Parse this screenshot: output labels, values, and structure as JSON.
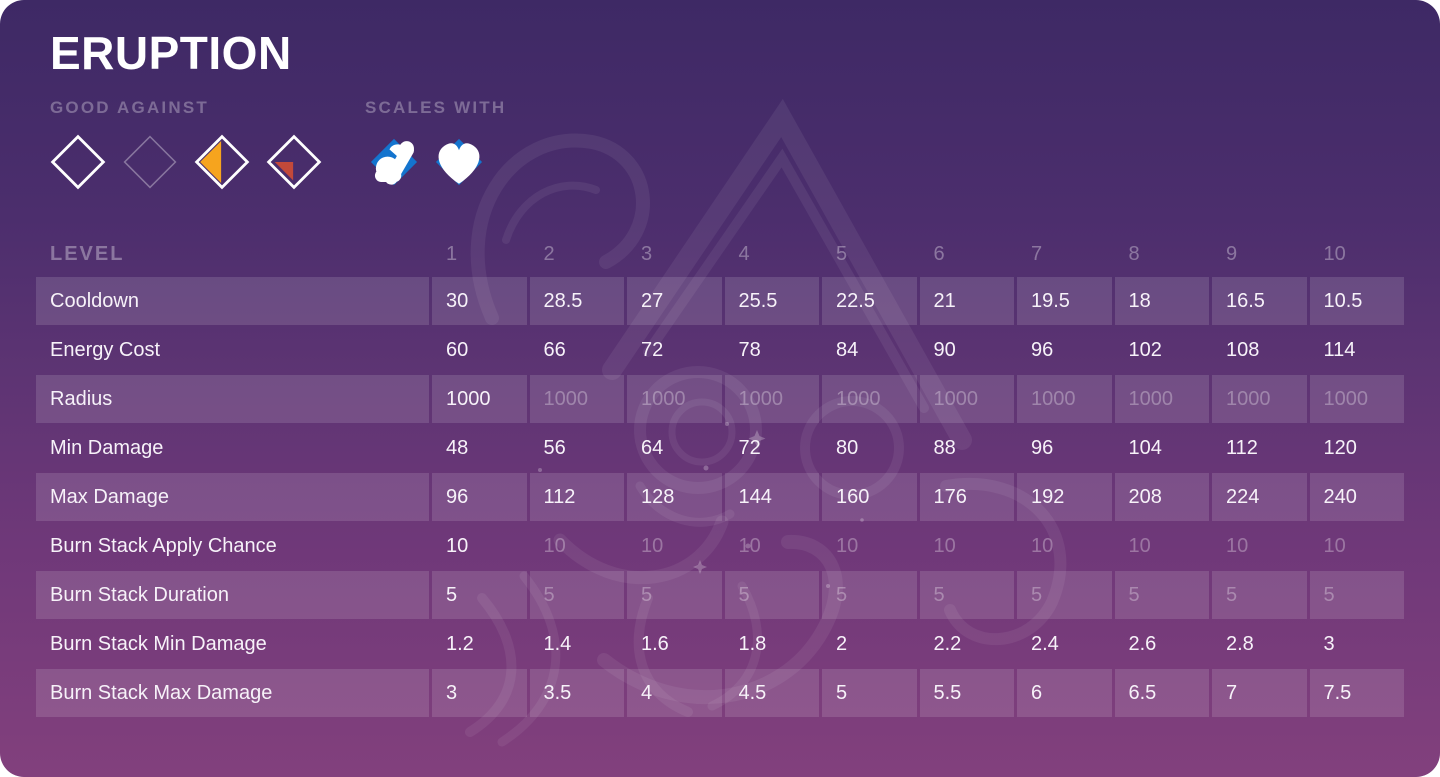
{
  "skill": {
    "name": "ERUPTION"
  },
  "good_against": {
    "label": "GOOD AGAINST",
    "items": [
      {
        "icon": "diamond-outline-icon",
        "variant": "full-outline"
      },
      {
        "icon": "diamond-outline-faint-icon",
        "variant": "faint-outline"
      },
      {
        "icon": "diamond-half-fill-icon",
        "variant": "half-fill"
      },
      {
        "icon": "diamond-quarter-fill-icon",
        "variant": "quarter-fill"
      }
    ]
  },
  "scales_with": {
    "label": "SCALES WITH",
    "items": [
      {
        "icon": "strength-icon"
      },
      {
        "icon": "health-icon"
      }
    ]
  },
  "colors": {
    "background_top": "#3E2965",
    "background_bottom": "#82407D",
    "row_stripe": "rgba(255,255,255,0.135)",
    "effectiveness_half": "#F6A41E",
    "effectiveness_quarter": "#C3493A",
    "scales_diamond": "#1474CE",
    "text_primary": "#FFFFFF",
    "text_muted": "rgba(255,255,255,0.32)"
  },
  "table": {
    "level_label": "LEVEL",
    "levels": [
      "1",
      "2",
      "3",
      "4",
      "5",
      "6",
      "7",
      "8",
      "9",
      "10"
    ],
    "rows": [
      {
        "label": "Cooldown",
        "values": [
          "30",
          "28.5",
          "27",
          "25.5",
          "22.5",
          "21",
          "19.5",
          "18",
          "16.5",
          "10.5"
        ],
        "dim_after_first": false
      },
      {
        "label": "Energy Cost",
        "values": [
          "60",
          "66",
          "72",
          "78",
          "84",
          "90",
          "96",
          "102",
          "108",
          "114"
        ],
        "dim_after_first": false
      },
      {
        "label": "Radius",
        "values": [
          "1000",
          "1000",
          "1000",
          "1000",
          "1000",
          "1000",
          "1000",
          "1000",
          "1000",
          "1000"
        ],
        "dim_after_first": true
      },
      {
        "label": "Min Damage",
        "values": [
          "48",
          "56",
          "64",
          "72",
          "80",
          "88",
          "96",
          "104",
          "112",
          "120"
        ],
        "dim_after_first": false
      },
      {
        "label": "Max Damage",
        "values": [
          "96",
          "112",
          "128",
          "144",
          "160",
          "176",
          "192",
          "208",
          "224",
          "240"
        ],
        "dim_after_first": false
      },
      {
        "label": "Burn Stack Apply Chance",
        "values": [
          "10",
          "10",
          "10",
          "10",
          "10",
          "10",
          "10",
          "10",
          "10",
          "10"
        ],
        "dim_after_first": true
      },
      {
        "label": "Burn Stack Duration",
        "values": [
          "5",
          "5",
          "5",
          "5",
          "5",
          "5",
          "5",
          "5",
          "5",
          "5"
        ],
        "dim_after_first": true
      },
      {
        "label": "Burn Stack Min Damage",
        "values": [
          "1.2",
          "1.4",
          "1.6",
          "1.8",
          "2",
          "2.2",
          "2.4",
          "2.6",
          "2.8",
          "3"
        ],
        "dim_after_first": false
      },
      {
        "label": "Burn Stack Max Damage",
        "values": [
          "3",
          "3.5",
          "4",
          "4.5",
          "5",
          "5.5",
          "6",
          "6.5",
          "7",
          "7.5"
        ],
        "dim_after_first": false
      }
    ]
  }
}
